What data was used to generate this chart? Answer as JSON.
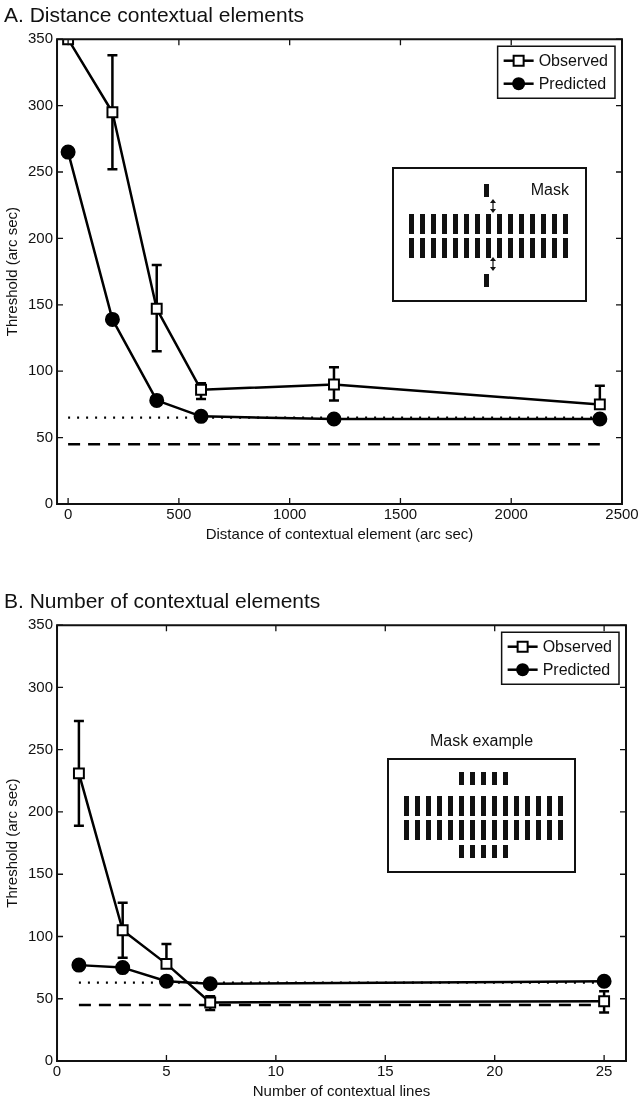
{
  "chart_data": [
    {
      "type": "line",
      "title": "A. Distance contextual elements",
      "xlabel": "Distance of contextual element (arc sec)",
      "ylabel": "Threshold (arc sec)",
      "x": [
        0,
        200,
        400,
        600,
        1200,
        2400
      ],
      "series": [
        {
          "name": "Observed",
          "color": "#000000",
          "marker": "square",
          "values": [
            350,
            295,
            147,
            86,
            90,
            75
          ],
          "errors": [
            null,
            [
              252,
              338
            ],
            [
              115,
              180
            ],
            [
              79,
              91
            ],
            [
              78,
              103
            ],
            [
              75,
              89
            ]
          ]
        },
        {
          "name": "Predicted",
          "color": "#000000",
          "marker": "circle",
          "values": [
            265,
            139,
            78,
            66,
            64,
            64
          ]
        }
      ],
      "xlim": [
        -50,
        2500
      ],
      "xticks": [
        0,
        500,
        1000,
        1500,
        2000,
        2500
      ],
      "ylim": [
        0,
        350
      ],
      "yticks": [
        0,
        50,
        100,
        150,
        200,
        250,
        300,
        350
      ],
      "ref_lines": [
        {
          "axis": "y",
          "value": 65,
          "line_style": "dotted",
          "color": "#000000"
        },
        {
          "axis": "y",
          "value": 45,
          "line_style": "dashed",
          "color": "#000000"
        }
      ],
      "grid": false,
      "legend": "top right",
      "line_style": "solid",
      "annotations": [
        "Mask"
      ]
    },
    {
      "type": "line",
      "title": "B. Number of contextual elements",
      "xlabel": "Number of contextual lines",
      "ylabel": "Threshold (arc sec)",
      "x": [
        1,
        3,
        5,
        7,
        25
      ],
      "series": [
        {
          "name": "Observed",
          "color": "#000000",
          "marker": "square",
          "values": [
            231,
            105,
            78,
            47,
            48
          ],
          "errors": [
            [
              189,
              273
            ],
            [
              83,
              127
            ],
            [
              78,
              94
            ],
            [
              41,
              52
            ],
            [
              39,
              56
            ]
          ]
        },
        {
          "name": "Predicted",
          "color": "#000000",
          "marker": "circle",
          "values": [
            77,
            75,
            64,
            62,
            64
          ]
        }
      ],
      "xlim": [
        0,
        26
      ],
      "xticks": [
        0,
        5,
        10,
        15,
        20,
        25
      ],
      "ylim": [
        0,
        350
      ],
      "yticks": [
        0,
        50,
        100,
        150,
        200,
        250,
        300,
        350
      ],
      "ref_lines": [
        {
          "axis": "y",
          "value": 63,
          "line_style": "dotted",
          "color": "#000000"
        },
        {
          "axis": "y",
          "value": 45,
          "line_style": "dashed",
          "color": "#000000"
        }
      ],
      "grid": false,
      "legend": "top right",
      "line_style": "solid",
      "annotations": [
        "Mask example"
      ]
    }
  ]
}
